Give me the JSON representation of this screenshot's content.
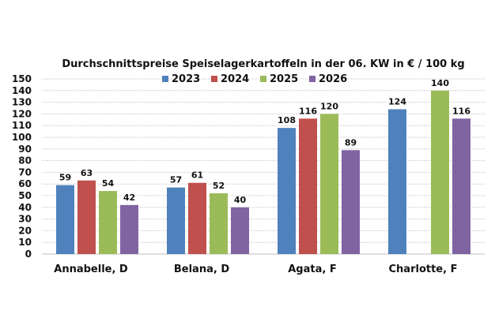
{
  "chart_data": {
    "type": "bar",
    "title": "Durchschnittspreise Speiselagerkartoffeln in der 06. KW in € / 100 kg",
    "xlabel": "",
    "ylabel": "",
    "ylim": [
      0,
      150
    ],
    "yticks": [
      0,
      10,
      20,
      30,
      40,
      50,
      60,
      70,
      80,
      90,
      100,
      110,
      120,
      130,
      140,
      150
    ],
    "grid": true,
    "legend_position": "top-center",
    "categories": [
      "Annabelle, D",
      "Belana, D",
      "Agata, F",
      "Charlotte, F"
    ],
    "series": [
      {
        "name": "2023",
        "color": "#4f81bd",
        "values": [
          59,
          57,
          108,
          124
        ]
      },
      {
        "name": "2024",
        "color": "#c0504d",
        "values": [
          63,
          61,
          116,
          null
        ]
      },
      {
        "name": "2025",
        "color": "#9bbb59",
        "values": [
          54,
          52,
          120,
          140
        ]
      },
      {
        "name": "2026",
        "color": "#8064a2",
        "values": [
          42,
          40,
          89,
          116
        ]
      }
    ]
  }
}
